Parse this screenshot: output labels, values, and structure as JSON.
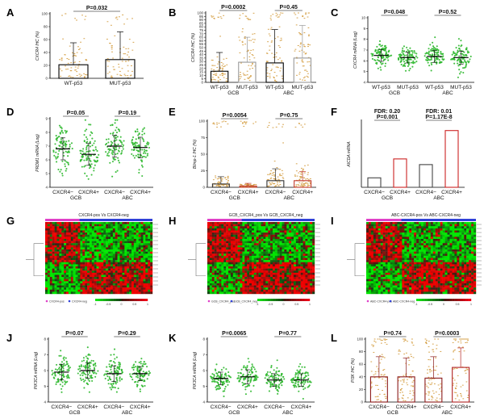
{
  "figure": {
    "panel_letters": [
      "A",
      "B",
      "C",
      "D",
      "E",
      "F",
      "G",
      "H",
      "I",
      "J",
      "K",
      "L"
    ]
  },
  "chart_data": [
    {
      "id": "A",
      "type": "bar",
      "ylabel": "CXCR4 IHC (%)",
      "ylim": [
        0,
        100
      ],
      "yticks": [
        0,
        20,
        40,
        60,
        80,
        100
      ],
      "categories": [
        "WT-p53",
        "MUT-p53"
      ],
      "values": [
        21,
        29
      ],
      "error_upper": [
        55,
        72
      ],
      "pvalues": [
        {
          "text": "P=0.032",
          "from": 0,
          "to": 1
        }
      ],
      "groups": [],
      "style": "bar-black"
    },
    {
      "id": "B",
      "type": "bar",
      "ylabel": "CXCR4 IHC (%)",
      "ylim": [
        0,
        100
      ],
      "yticks": [
        0,
        5,
        10,
        15,
        20,
        25,
        30,
        35,
        40,
        45,
        50,
        55,
        60,
        65,
        70,
        75,
        80,
        85,
        90,
        95,
        100
      ],
      "categories": [
        "WT-p53",
        "MUT-p53",
        "WT-p53",
        "MUT-p53"
      ],
      "values": [
        16,
        29,
        28,
        35
      ],
      "error_upper": [
        43,
        65,
        76,
        82
      ],
      "pvalues": [
        {
          "text": "P=0.0002",
          "from": 0,
          "to": 1
        },
        {
          "text": "P=0.45",
          "from": 2,
          "to": 3
        }
      ],
      "groups": [
        {
          "label": "GCB",
          "from": 0,
          "to": 1
        },
        {
          "label": "ABC",
          "from": 2,
          "to": 3
        }
      ],
      "style": "bar-mixed"
    },
    {
      "id": "C",
      "type": "scatter",
      "ylabel": "CXCR4 mRNA (Log)",
      "ylim": [
        4,
        10
      ],
      "yticks": [
        4,
        5,
        6,
        7,
        8,
        9,
        10
      ],
      "categories": [
        "WT-p53",
        "MUT-p53",
        "WT-p53",
        "MUT-p53"
      ],
      "means": [
        6.5,
        6.3,
        6.4,
        6.3
      ],
      "sds": [
        0.55,
        0.5,
        0.55,
        0.6
      ],
      "pvalues": [
        {
          "text": "P=0.048",
          "from": 0,
          "to": 1
        },
        {
          "text": "P=0.52",
          "from": 2,
          "to": 3
        }
      ],
      "groups": [
        {
          "label": "GCB",
          "from": 0,
          "to": 1
        },
        {
          "label": "ABC",
          "from": 2,
          "to": 3
        }
      ]
    },
    {
      "id": "D",
      "type": "scatter",
      "ylabel": "PRDM1 mRNA (Log)",
      "ylim": [
        4,
        9
      ],
      "yticks": [
        4,
        5,
        6,
        7,
        8,
        9
      ],
      "categories": [
        "CXCR4−",
        "CXCR4+",
        "CXCR4−",
        "CXCR4+"
      ],
      "means": [
        6.8,
        6.4,
        7.0,
        6.9
      ],
      "sds": [
        0.8,
        0.8,
        0.8,
        0.75
      ],
      "pvalues": [
        {
          "text": "P=0.05",
          "from": 0,
          "to": 1
        },
        {
          "text": "P=0.19",
          "from": 2,
          "to": 3
        }
      ],
      "groups": [
        {
          "label": "GCB",
          "from": 0,
          "to": 1
        },
        {
          "label": "ABC",
          "from": 2,
          "to": 3
        }
      ]
    },
    {
      "id": "E",
      "type": "bar",
      "ylabel": "Blimp-1 IHC (%)",
      "ylim": [
        0,
        100
      ],
      "yticks": [
        0,
        25,
        50,
        75,
        100
      ],
      "categories": [
        "CXCR4−",
        "CXCR4+",
        "CXCR4−",
        "CXCR4+"
      ],
      "values": [
        5,
        2,
        10,
        10
      ],
      "error_upper": [
        16,
        6,
        28,
        24
      ],
      "pvalues": [
        {
          "text": "P=0.0054",
          "from": 0,
          "to": 1
        },
        {
          "text": "P=0.75",
          "from": 2,
          "to": 3
        }
      ],
      "groups": [
        {
          "label": "GCB",
          "from": 0,
          "to": 1
        },
        {
          "label": "ABC",
          "from": 2,
          "to": 3
        }
      ],
      "style": "bar-color"
    },
    {
      "id": "F",
      "type": "bar",
      "ylabel": "AICDA mRNA",
      "ylim": [
        0,
        7
      ],
      "yticks": [],
      "categories": [
        "CXCR4−",
        "CXCR4+",
        "CXCR4−",
        "CXCR4+"
      ],
      "values": [
        1.0,
        3.0,
        2.4,
        6.0
      ],
      "error_upper": [],
      "pvalues": [
        {
          "text": "FDR: 0.20",
          "from": 0,
          "to": 1
        },
        {
          "text": "P=0.001",
          "from": 0,
          "to": 1,
          "line": 2
        },
        {
          "text": "FDR: 0.01",
          "from": 2,
          "to": 3
        },
        {
          "text": "P=1.17E-8",
          "from": 2,
          "to": 3,
          "line": 2
        }
      ],
      "groups": [
        {
          "label": "GCB",
          "from": 0,
          "to": 1
        },
        {
          "label": "ABC",
          "from": 2,
          "to": 3
        }
      ],
      "style": "bar-fdr"
    },
    {
      "id": "G",
      "type": "heatmap",
      "title": "CXCR4-pos Vs CXCR4-neg",
      "legend": [
        "CXCR4-pos",
        "CXCR4-neg"
      ],
      "scale": [
        "-1",
        "-0.5",
        "0",
        "0.5",
        "1"
      ]
    },
    {
      "id": "H",
      "type": "heatmap",
      "title": "GCB_CXCR4_pos Vs GCB_CXCR4_neg",
      "legend": [
        "GCB_CXCR4_pos",
        "GCB_CXCR4_neg"
      ],
      "scale": [
        "-1",
        "-0.5",
        "0",
        "0.5",
        "1"
      ]
    },
    {
      "id": "I",
      "type": "heatmap",
      "title": "ABC-CXCR4-pos Vs ABC-CXCR4-neg",
      "legend": [
        "ABC-CXCR4-pos",
        "ABC-CXCR4-neg"
      ],
      "scale": [
        "-1",
        "-0.5",
        "0",
        "0.5",
        "1"
      ]
    },
    {
      "id": "J",
      "type": "scatter",
      "ylabel": "PIK3CA mRNA (Log)",
      "ylim": [
        4,
        8
      ],
      "yticks": [
        4,
        5,
        6,
        7,
        8
      ],
      "categories": [
        "CXCR4−",
        "CXCR4+",
        "CXCR4−",
        "CXCR4+"
      ],
      "means": [
        5.9,
        6.0,
        5.8,
        5.8
      ],
      "sds": [
        0.5,
        0.5,
        0.5,
        0.45
      ],
      "pvalues": [
        {
          "text": "P=0.07",
          "from": 0,
          "to": 1
        },
        {
          "text": "P=0.29",
          "from": 2,
          "to": 3
        }
      ],
      "groups": [
        {
          "label": "GCB",
          "from": 0,
          "to": 1
        },
        {
          "label": "ABC",
          "from": 2,
          "to": 3
        }
      ]
    },
    {
      "id": "K",
      "type": "scatter",
      "ylabel": "PIK3CA mRNA (Log)",
      "ylim": [
        4,
        8
      ],
      "yticks": [
        4,
        5,
        6,
        7,
        8
      ],
      "categories": [
        "CXCR4−",
        "CXCR4+",
        "CXCR4−",
        "CXCR4+"
      ],
      "means": [
        5.5,
        5.6,
        5.4,
        5.4
      ],
      "sds": [
        0.4,
        0.45,
        0.4,
        0.4
      ],
      "pvalues": [
        {
          "text": "P=0.0065",
          "from": 0,
          "to": 1
        },
        {
          "text": "P=0.77",
          "from": 2,
          "to": 3
        }
      ],
      "groups": [
        {
          "label": "GCB",
          "from": 0,
          "to": 1
        },
        {
          "label": "ABC",
          "from": 2,
          "to": 3
        }
      ]
    },
    {
      "id": "L",
      "type": "bar",
      "ylabel": "PI3K IHC (%)",
      "ylim": [
        0,
        100
      ],
      "yticks": [
        0,
        20,
        40,
        60,
        80,
        100
      ],
      "categories": [
        "CXCR4−",
        "CXCR4+",
        "CXCR4−",
        "CXCR4+"
      ],
      "values": [
        40,
        40,
        38,
        55
      ],
      "error_upper": [
        72,
        70,
        72,
        86
      ],
      "pvalues": [
        {
          "text": "P=0.74",
          "from": 0,
          "to": 1
        },
        {
          "text": "P=0.0003",
          "from": 2,
          "to": 3
        }
      ],
      "groups": [
        {
          "label": "GCB",
          "from": 0,
          "to": 1
        },
        {
          "label": "ABC",
          "from": 2,
          "to": 3
        }
      ],
      "style": "bar-red"
    }
  ]
}
